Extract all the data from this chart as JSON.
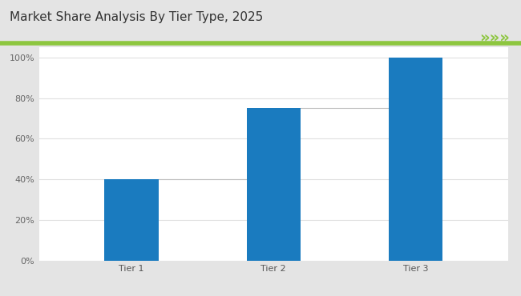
{
  "title": "Market Share Analysis By Tier Type, 2025",
  "categories": [
    "Tier 1",
    "Tier 2",
    "Tier 3"
  ],
  "values": [
    40,
    75,
    100
  ],
  "bar_color": "#1a7bbf",
  "connector_color": "#c0c0c0",
  "background_outer": "#e4e4e4",
  "background_inner": "#ffffff",
  "title_fontsize": 11,
  "tick_fontsize": 8,
  "ylim": [
    0,
    105
  ],
  "yticks": [
    0,
    20,
    40,
    60,
    80,
    100
  ],
  "grid_color": "#e0e0e0",
  "accent_line_color": "#8dc63f",
  "arrow_color": "#8dc63f",
  "title_color": "#333333",
  "bar_width": 0.38
}
